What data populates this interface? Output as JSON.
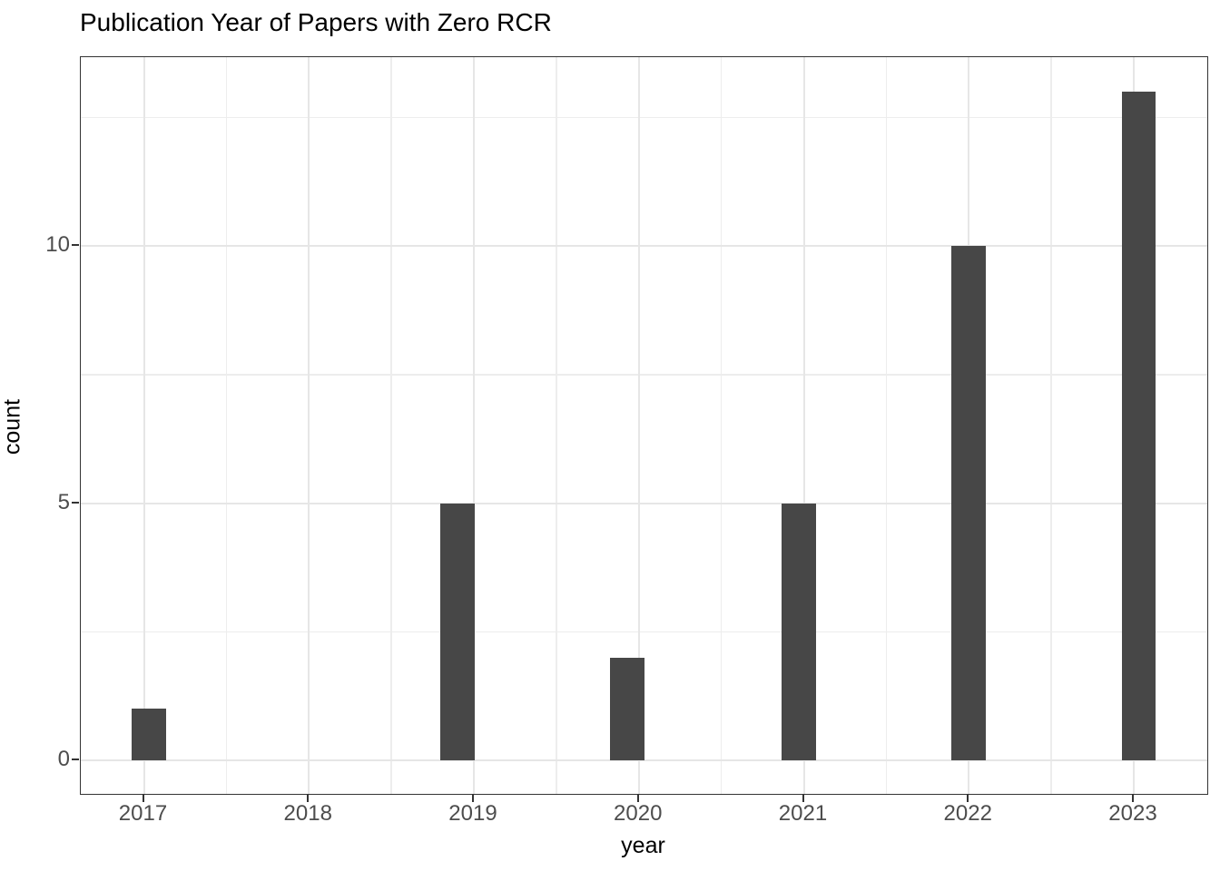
{
  "chart_data": {
    "type": "bar",
    "title": "Publication Year of Papers with Zero RCR",
    "xlabel": "year",
    "ylabel": "count",
    "categories": [
      2017,
      2018,
      2019,
      2020,
      2021,
      2022,
      2023
    ],
    "values": [
      1,
      0,
      5,
      2,
      5,
      10,
      13
    ],
    "bars": [
      {
        "x": 2017.03,
        "count": 1
      },
      {
        "x": 2018.9,
        "count": 5
      },
      {
        "x": 2019.93,
        "count": 2
      },
      {
        "x": 2020.97,
        "count": 5
      },
      {
        "x": 2022.0,
        "count": 10
      },
      {
        "x": 2023.03,
        "count": 13
      }
    ],
    "bar_width_years": 0.207,
    "x_ticks": [
      2017,
      2018,
      2019,
      2020,
      2021,
      2022,
      2023
    ],
    "x_minor_ticks": [
      2017.5,
      2018.5,
      2019.5,
      2020.5,
      2021.5,
      2022.5
    ],
    "y_ticks": [
      0,
      5,
      10
    ],
    "y_minor_ticks": [
      2.5,
      7.5,
      12.5
    ],
    "xlim": [
      2016.62,
      2023.45
    ],
    "ylim": [
      -0.65,
      13.7
    ],
    "grid": "on",
    "legend": "none",
    "colors": {
      "bar_fill": "#474747",
      "panel_border": "#333333",
      "grid_major": "#e6e6e6",
      "grid_minor": "#ededed",
      "tick_label": "#4d4d4d",
      "title_text": "#000000",
      "axis_label": "#000000",
      "background": "#ffffff"
    }
  }
}
